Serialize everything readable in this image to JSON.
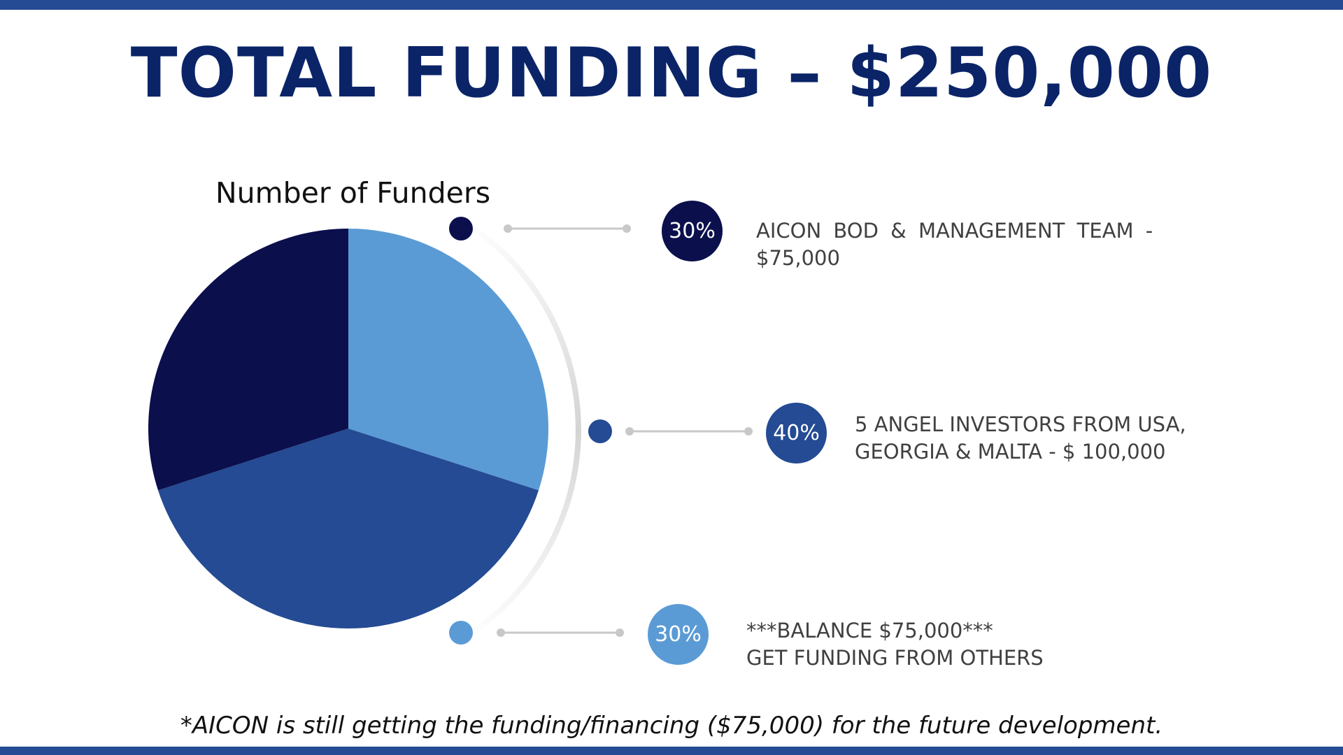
{
  "title": "TOTAL FUNDING – $250,000",
  "footnote": "*AICON is still getting the funding/financing ($75,000) for the future development.",
  "colors": {
    "frame": "#244b93",
    "title": "#0b2468",
    "series_1": "#5b9bd5",
    "series_2": "#244b93",
    "series_3": "#0b0f4c"
  },
  "chart_data": {
    "type": "pie",
    "title": "Number of Funders",
    "start_angle_deg": 0,
    "direction": "clockwise",
    "slices": [
      {
        "value": 30,
        "color": "#5b9bd5"
      },
      {
        "value": 40,
        "color": "#244b93"
      },
      {
        "value": 30,
        "color": "#0b0f4c"
      }
    ]
  },
  "legend": [
    {
      "percent": "30%",
      "color": "#0b0f4c",
      "lines": [
        "AICON BOD & MANAGEMENT TEAM -",
        "$75,000"
      ]
    },
    {
      "percent": "40%",
      "color": "#244b93",
      "lines": [
        "5 ANGEL INVESTORS FROM USA,",
        "GEORGIA & MALTA - $ 100,000"
      ]
    },
    {
      "percent": "30%",
      "color": "#5b9bd5",
      "lines": [
        "***BALANCE $75,000***",
        "GET FUNDING FROM OTHERS"
      ]
    }
  ]
}
